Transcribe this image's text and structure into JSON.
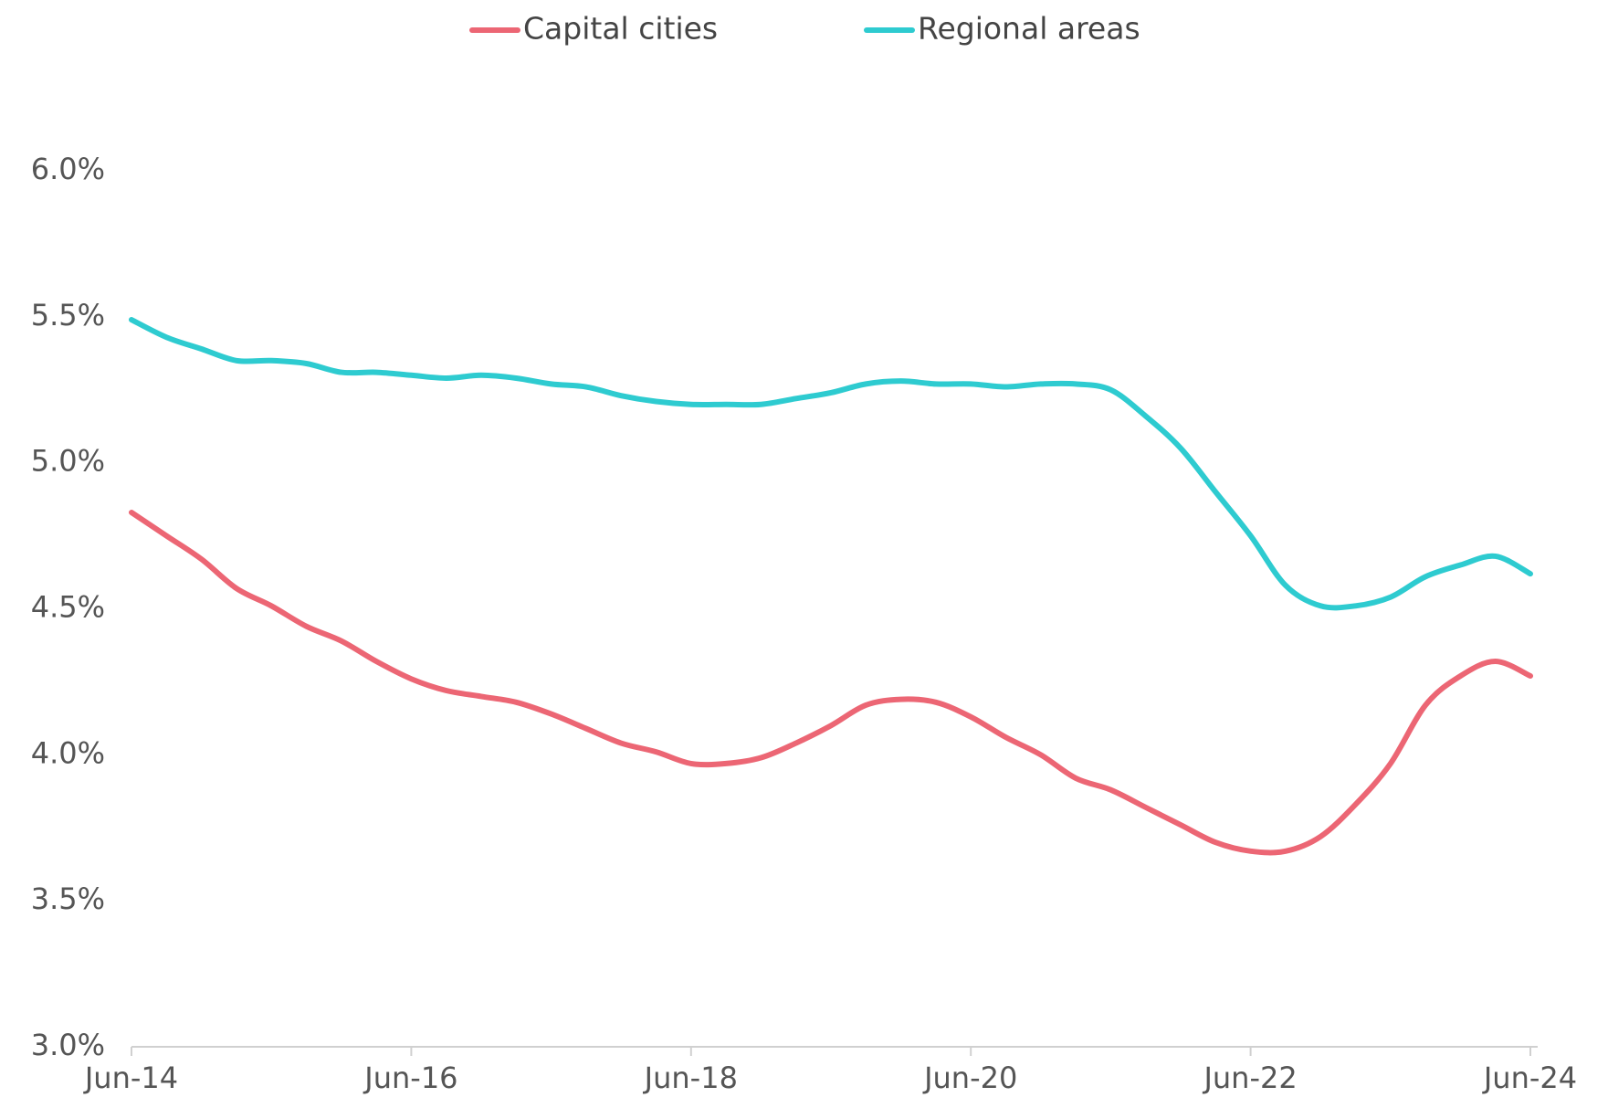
{
  "chart_data": {
    "type": "line",
    "x": [
      "2014-06",
      "2014-09",
      "2014-12",
      "2015-03",
      "2015-06",
      "2015-09",
      "2015-12",
      "2016-03",
      "2016-06",
      "2016-09",
      "2016-12",
      "2017-03",
      "2017-06",
      "2017-09",
      "2017-12",
      "2018-03",
      "2018-06",
      "2018-09",
      "2018-12",
      "2019-03",
      "2019-06",
      "2019-09",
      "2019-12",
      "2020-03",
      "2020-06",
      "2020-09",
      "2020-12",
      "2021-03",
      "2021-06",
      "2021-09",
      "2021-12",
      "2022-03",
      "2022-06",
      "2022-09",
      "2022-12",
      "2023-03",
      "2023-06",
      "2023-09",
      "2023-12",
      "2024-03",
      "2024-06"
    ],
    "series": [
      {
        "name": "Capital cities",
        "color": "#ec6674",
        "values": [
          4.83,
          4.75,
          4.67,
          4.57,
          4.51,
          4.44,
          4.39,
          4.32,
          4.26,
          4.22,
          4.2,
          4.18,
          4.14,
          4.09,
          4.04,
          4.01,
          3.97,
          3.97,
          3.99,
          4.04,
          4.1,
          4.17,
          4.19,
          4.18,
          4.13,
          4.06,
          4.0,
          3.92,
          3.88,
          3.82,
          3.76,
          3.7,
          3.67,
          3.67,
          3.72,
          3.83,
          3.97,
          4.17,
          4.27,
          4.32,
          4.27
        ]
      },
      {
        "name": "Regional areas",
        "color": "#2ecbd0",
        "values": [
          5.49,
          5.43,
          5.39,
          5.35,
          5.35,
          5.34,
          5.31,
          5.31,
          5.3,
          5.29,
          5.3,
          5.29,
          5.27,
          5.26,
          5.23,
          5.21,
          5.2,
          5.2,
          5.2,
          5.22,
          5.24,
          5.27,
          5.28,
          5.27,
          5.27,
          5.26,
          5.27,
          5.27,
          5.25,
          5.16,
          5.05,
          4.9,
          4.75,
          4.58,
          4.51,
          4.51,
          4.54,
          4.61,
          4.65,
          4.68,
          4.62
        ]
      }
    ],
    "xlim": [
      "2014-06",
      "2024-06"
    ],
    "xticks": [
      {
        "value": "2014-06",
        "label": "Jun-14"
      },
      {
        "value": "2016-06",
        "label": "Jun-16"
      },
      {
        "value": "2018-06",
        "label": "Jun-18"
      },
      {
        "value": "2020-06",
        "label": "Jun-20"
      },
      {
        "value": "2022-06",
        "label": "Jun-22"
      },
      {
        "value": "2024-06",
        "label": "Jun-24"
      }
    ],
    "ylim": [
      3.0,
      6.0
    ],
    "yticks": [
      {
        "value": 3.0,
        "label": "3.0%"
      },
      {
        "value": 3.5,
        "label": "3.5%"
      },
      {
        "value": 4.0,
        "label": "4.0%"
      },
      {
        "value": 4.5,
        "label": "4.5%"
      },
      {
        "value": 5.0,
        "label": "5.0%"
      },
      {
        "value": 5.5,
        "label": "5.5%"
      },
      {
        "value": 6.0,
        "label": "6.0%"
      }
    ],
    "grid": false,
    "legend": "top"
  }
}
